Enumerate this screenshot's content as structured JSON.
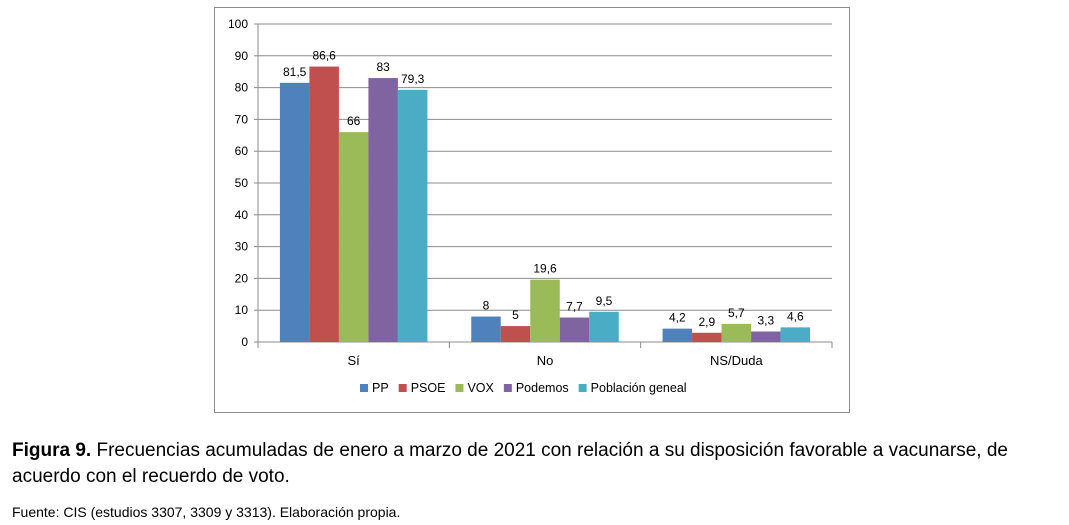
{
  "chart_data": {
    "type": "bar",
    "categories": [
      "Sí",
      "No",
      "NS/Duda"
    ],
    "series": [
      {
        "name": "PP",
        "color": "#4f81bd",
        "values": [
          81.5,
          8,
          4.2
        ],
        "labels": [
          "81,5",
          "8",
          "4,2"
        ]
      },
      {
        "name": "PSOE",
        "color": "#c0504d",
        "values": [
          86.6,
          5,
          2.9
        ],
        "labels": [
          "86,6",
          "5",
          "2,9"
        ]
      },
      {
        "name": "VOX",
        "color": "#9bbb59",
        "values": [
          66,
          19.6,
          5.7
        ],
        "labels": [
          "66",
          "19,6",
          "5,7"
        ]
      },
      {
        "name": "Podemos",
        "color": "#8064a2",
        "values": [
          83,
          7.7,
          3.3
        ],
        "labels": [
          "83",
          "7,7",
          "3,3"
        ]
      },
      {
        "name": "Población geneal",
        "color": "#4bacc6",
        "values": [
          79.3,
          9.5,
          4.6
        ],
        "labels": [
          "79,3",
          "9,5",
          "4,6"
        ]
      }
    ],
    "ylim": [
      0,
      100
    ],
    "yticks": [
      0,
      10,
      20,
      30,
      40,
      50,
      60,
      70,
      80,
      90,
      100
    ],
    "grid": true,
    "legend": "bottom"
  },
  "caption": {
    "label": "Figura 9.",
    "text": " Frecuencias acumuladas de enero a marzo de 2021 con relación a su disposición favorable a vacunarse, de acuerdo con el recuerdo de voto."
  },
  "source": "Fuente: CIS (estudios 3307, 3309 y 3313). Elaboración propia."
}
